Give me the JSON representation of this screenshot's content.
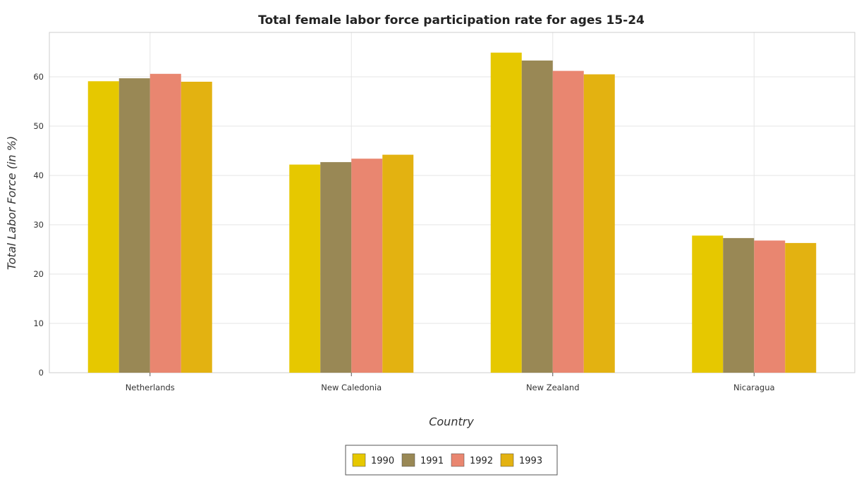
{
  "chart_data": {
    "type": "bar",
    "title": "Total female labor force participation rate for ages 15-24",
    "xlabel": "Country",
    "ylabel": "Total Labor Force (in %)",
    "categories": [
      "Netherlands",
      "New Caledonia",
      "New Zealand",
      "Nicaragua"
    ],
    "series": [
      {
        "name": "1990",
        "color": "#e6c800",
        "values": [
          59.1,
          42.2,
          64.9,
          27.8
        ]
      },
      {
        "name": "1991",
        "color": "#998855",
        "values": [
          59.7,
          42.7,
          63.3,
          27.3
        ]
      },
      {
        "name": "1992",
        "color": "#e98670",
        "values": [
          60.6,
          43.4,
          61.2,
          26.8
        ]
      },
      {
        "name": "1993",
        "color": "#e3b211",
        "values": [
          59.0,
          44.2,
          60.5,
          26.3
        ]
      }
    ],
    "ylim": [
      0,
      69
    ],
    "yticks": [
      0,
      10,
      20,
      30,
      40,
      50,
      60
    ],
    "grid": true,
    "legend_position": "bottom-center"
  }
}
